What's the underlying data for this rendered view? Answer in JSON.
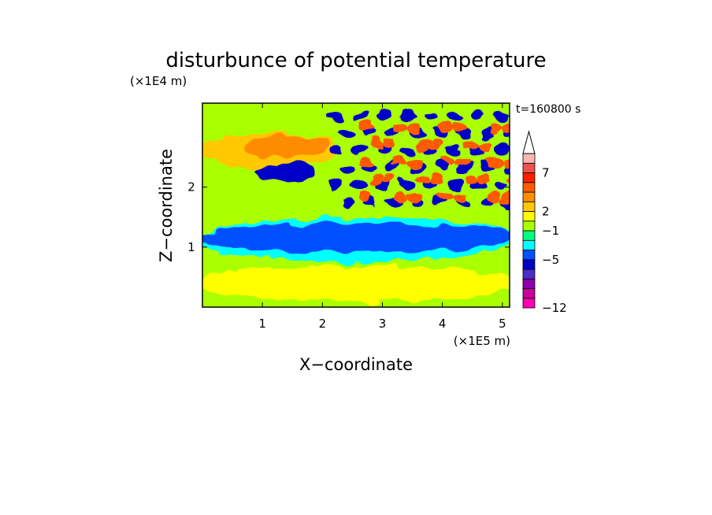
{
  "chart_data": {
    "type": "heatmap",
    "title": "disturbunce of potential temperature",
    "xlabel": "X−coordinate",
    "ylabel": "Z−coordinate",
    "x_scale_label": "(×1E5 m)",
    "y_scale_label": "(×1E4 m)",
    "time_label": "t=160800 s",
    "xlim": [
      0,
      5.12
    ],
    "ylim": [
      0,
      3.4
    ],
    "x_ticks": [
      {
        "value": 1,
        "label": "1"
      },
      {
        "value": 2,
        "label": "2"
      },
      {
        "value": 3,
        "label": "3"
      },
      {
        "value": 4,
        "label": "4"
      },
      {
        "value": 5,
        "label": "5"
      }
    ],
    "y_ticks": [
      {
        "value": 1,
        "label": "1"
      },
      {
        "value": 2,
        "label": "2"
      }
    ],
    "colorbar": {
      "orientation": "vertical",
      "extend": "max",
      "extend_color": "#ffffff",
      "levels": [
        {
          "color": "#ff00b4"
        },
        {
          "color": "#c8009b"
        },
        {
          "color": "#8c00aa"
        },
        {
          "color": "#4b2dc8"
        },
        {
          "color": "#0000c8"
        },
        {
          "color": "#0050ff"
        },
        {
          "color": "#00ffff"
        },
        {
          "color": "#00ff80"
        },
        {
          "color": "#aaff00"
        },
        {
          "color": "#ffff00"
        },
        {
          "color": "#ffc800"
        },
        {
          "color": "#ff8c00"
        },
        {
          "color": "#ff5a00"
        },
        {
          "color": "#ff1e00"
        },
        {
          "color": "#f05050"
        },
        {
          "color": "#ffb4b4"
        }
      ],
      "tick_labels": [
        {
          "index": 0,
          "label": "−12"
        },
        {
          "index": 5,
          "label": "−5"
        },
        {
          "index": 8,
          "label": "−1"
        },
        {
          "index": 10,
          "label": "2"
        },
        {
          "index": 14,
          "label": "7"
        }
      ]
    },
    "fields": {
      "background_color": "#aaff00",
      "regions": [
        {
          "name": "lower-yellow-band",
          "color": "#ffff00",
          "x": [
            0,
            5.12
          ],
          "y": [
            0.1,
            0.7
          ]
        },
        {
          "name": "mid-cyan-layer",
          "color": "#00ffff",
          "x": [
            0,
            5.12
          ],
          "y": [
            0.75,
            1.5
          ]
        },
        {
          "name": "mid-blue-layer",
          "color": "#0050ff",
          "x": [
            0,
            5.12
          ],
          "y": [
            0.9,
            1.4
          ]
        },
        {
          "name": "upper-orange-band",
          "color": "#ffc800",
          "x": [
            0,
            2.2
          ],
          "y": [
            2.3,
            2.9
          ]
        },
        {
          "name": "upper-warm-core",
          "color": "#ff8c00",
          "x": [
            0.8,
            2.0
          ],
          "y": [
            2.5,
            2.85
          ]
        },
        {
          "name": "upper-cold-core",
          "color": "#0000c8",
          "x": [
            1.0,
            1.8
          ],
          "y": [
            2.1,
            2.4
          ]
        },
        {
          "name": "wave-cold-cells",
          "color": "#0000c8",
          "x": [
            2.1,
            5.12
          ],
          "y": [
            1.6,
            3.3
          ]
        },
        {
          "name": "wave-warm-cells",
          "color": "#ff5a00",
          "x": [
            2.6,
            5.12
          ],
          "y": [
            1.6,
            3.1
          ]
        }
      ]
    }
  }
}
